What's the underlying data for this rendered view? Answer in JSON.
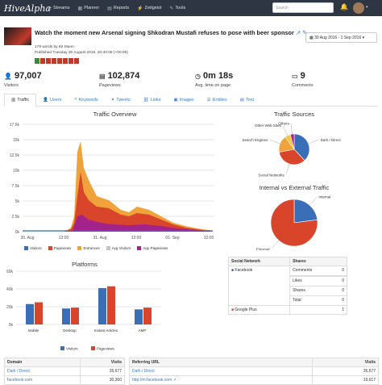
{
  "nav": {
    "logo": "HiveAlpha",
    "items": [
      {
        "label": "Streams",
        "icon": "⇄"
      },
      {
        "label": "Planner",
        "icon": "▦"
      },
      {
        "label": "Reports",
        "icon": "▤"
      },
      {
        "label": "Zeitgeist",
        "icon": "⚡"
      },
      {
        "label": "Tools",
        "icon": "✎"
      }
    ],
    "search_placeholder": "Search"
  },
  "article": {
    "title": "Watch the moment new Arsenal signing Shkodran Mustafi refuses to pose with beer sponsor",
    "words": "179 words by Kit Mann",
    "published": "Published Tuesday 30 August 2016, 20:40:09 (+00:00)",
    "share_colors": [
      "#3b8a3b",
      "#c0392b",
      "#c0392b",
      "#c0392b",
      "#c0392b",
      "#c0392b",
      "#c0392b",
      "#c0392b"
    ]
  },
  "daterange": "30 Aug 2016 - 1 Sep 2016",
  "stats": [
    {
      "value": "97,007",
      "label": "Visitors",
      "icon": "user-icon"
    },
    {
      "value": "102,874",
      "label": "Pageviews",
      "icon": "pageviews-icon"
    },
    {
      "value": "0m 18s",
      "label": "Avg. time on page",
      "icon": "clock-icon"
    },
    {
      "value": "9",
      "label": "Comments",
      "icon": "comment-icon"
    }
  ],
  "tabs": [
    "Traffic",
    "Users",
    "Keywords",
    "Tweets",
    "Links",
    "Images",
    "Entities",
    "Text"
  ],
  "traffic": {
    "title": "Traffic Overview",
    "yticks": [
      "17.5k",
      "15k",
      "12.5k",
      "10k",
      "7.5k",
      "5k",
      "2.5k",
      "0k"
    ],
    "xticks": [
      "30. Aug",
      "12:00",
      "31. Aug",
      "12:00",
      "01. Sep",
      "12:00"
    ],
    "legend": [
      {
        "name": "Visitors",
        "color": "#3a6fb8"
      },
      {
        "name": "Pageviews",
        "color": "#d9452b"
      },
      {
        "name": "Entrances",
        "color": "#f0a33a"
      },
      {
        "name": "Avg Visitors",
        "color": "#bfc5cc"
      },
      {
        "name": "App Pageviews",
        "color": "#a4238a"
      }
    ]
  },
  "sources": {
    "title": "Traffic Sources",
    "labels": [
      "Others",
      "Other Web Sites",
      "Search Engines",
      "Dark / Direct",
      "Social Networks"
    ]
  },
  "ie": {
    "title": "Internal vs External Traffic",
    "labels": [
      "Internal",
      "External"
    ]
  },
  "chart_data": [
    {
      "type": "bar",
      "title": "Platforms",
      "categories": [
        "Mobile",
        "Desktop",
        "Instant Articles",
        "AMP"
      ],
      "series": [
        {
          "name": "Visitors",
          "values": [
            23000,
            18000,
            41000,
            17000
          ],
          "color": "#3a6fb8"
        },
        {
          "name": "Pageviews",
          "values": [
            25000,
            19000,
            43000,
            19000
          ],
          "color": "#d9452b"
        }
      ],
      "ylim": [
        0,
        60000
      ],
      "yticks": [
        "60k",
        "40k",
        "20k",
        "0k"
      ]
    },
    {
      "type": "pie",
      "title": "Traffic Sources",
      "slices": [
        {
          "label": "Dark / Direct",
          "value": 38,
          "color": "#3a6fb8"
        },
        {
          "label": "Social Networks",
          "value": 34,
          "color": "#d9452b"
        },
        {
          "label": "Search Engines",
          "value": 18,
          "color": "#f0a33a"
        },
        {
          "label": "Other Web Sites",
          "value": 6,
          "color": "#f4c542"
        },
        {
          "label": "Others",
          "value": 4,
          "color": "#a4238a"
        }
      ]
    },
    {
      "type": "pie",
      "title": "Internal vs External Traffic",
      "slices": [
        {
          "label": "Internal",
          "value": 23,
          "color": "#3a6fb8"
        },
        {
          "label": "External",
          "value": 77,
          "color": "#d9452b"
        }
      ]
    }
  ],
  "social": {
    "headers": [
      "Social Network",
      "Shares"
    ],
    "network": "Facebook",
    "rows": [
      [
        "Comments",
        "0"
      ],
      [
        "Likes",
        "0"
      ],
      [
        "Shares",
        "0"
      ],
      [
        "Total",
        "0"
      ]
    ],
    "gplus": "Google Plus",
    "gplus_val": "1"
  },
  "domain_table": {
    "headers": [
      "Domain",
      "Visits"
    ],
    "rows": [
      [
        "Dark / Direct",
        "35,677"
      ],
      [
        "facebook.com",
        "30,360"
      ]
    ]
  },
  "ref_table": {
    "headers": [
      "Referring URL",
      "Visits"
    ],
    "rows": [
      [
        "Dark / Direct",
        "35,677"
      ],
      [
        "http://m.facebook.com",
        "19,617"
      ]
    ]
  }
}
